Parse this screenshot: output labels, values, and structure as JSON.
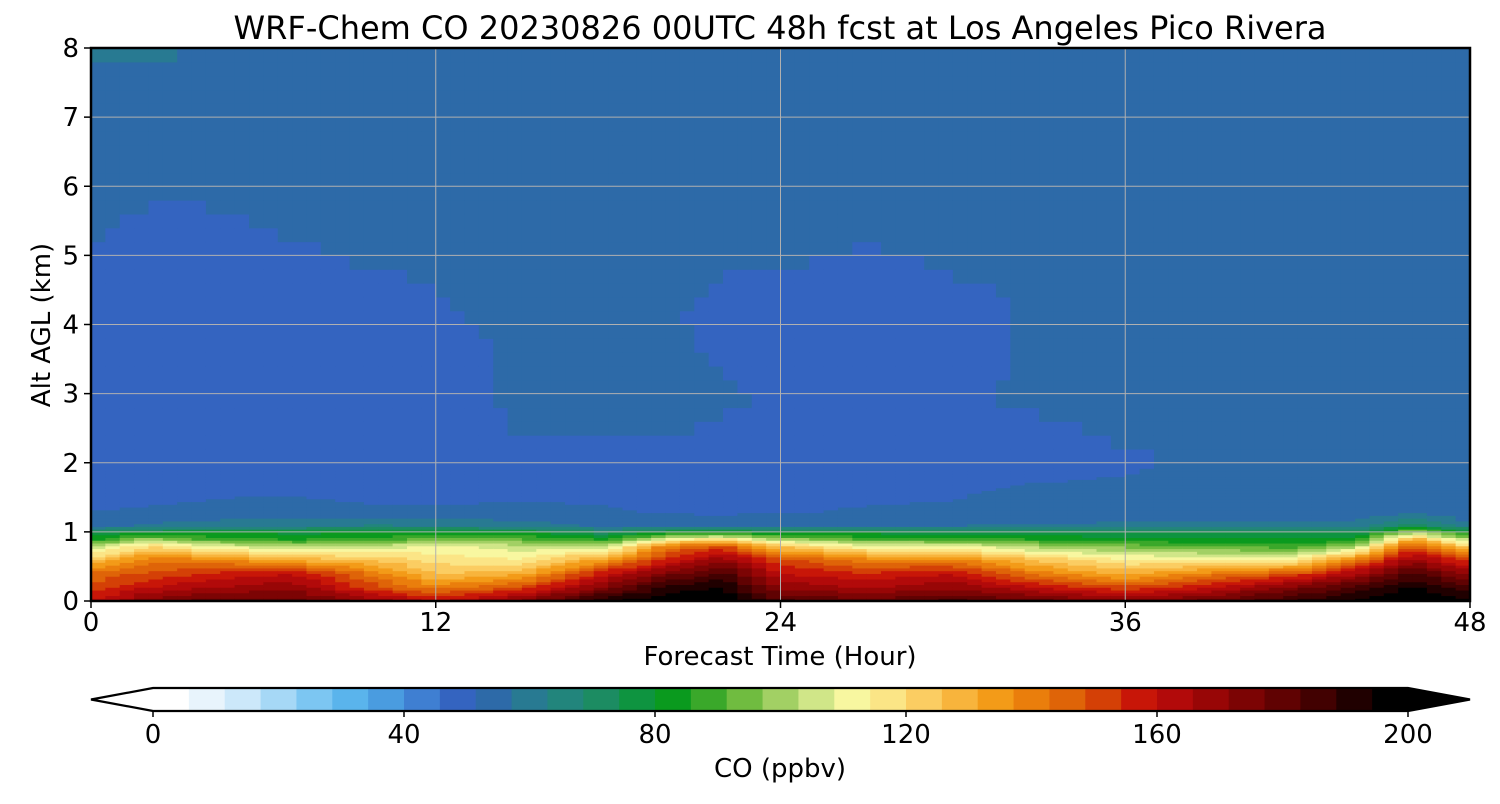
{
  "chart_data": {
    "type": "heatmap",
    "title": "WRF-Chem CO  20230826 00UTC 48h fcst at Los Angeles Pico Rivera",
    "xlabel": "Forecast Time (Hour)",
    "ylabel": "Alt AGL (km)",
    "xlim": [
      0,
      48
    ],
    "ylim": [
      0,
      8
    ],
    "x_ticks": [
      "0",
      "12",
      "24",
      "36",
      "48"
    ],
    "y_ticks": [
      "0",
      "1",
      "2",
      "3",
      "4",
      "5",
      "6",
      "7",
      "8"
    ],
    "grid": true,
    "colorbar": {
      "label": "CO  (ppbv)",
      "ticks": [
        "0",
        "40",
        "80",
        "120",
        "160",
        "200"
      ],
      "range": [
        0,
        200
      ],
      "extend": "both",
      "orientation": "horizontal",
      "colors": [
        "#ffffff",
        "#e8f4fc",
        "#cce8fa",
        "#a6d8f6",
        "#7cc6f2",
        "#5ab4ec",
        "#4a9ce0",
        "#3f7fd2",
        "#3464c0",
        "#2d6aa8",
        "#287a92",
        "#22857c",
        "#1c8c62",
        "#0e9440",
        "#0a9a1e",
        "#3aa82a",
        "#70bc40",
        "#a2d064",
        "#d0e688",
        "#f8f7a0",
        "#fbe586",
        "#fbcd62",
        "#f8b43c",
        "#f39b18",
        "#ea7e0c",
        "#df6408",
        "#d44006",
        "#c81608",
        "#b20a0a",
        "#980606",
        "#7c0404",
        "#600202",
        "#420101",
        "#200000",
        "#000000"
      ]
    },
    "field_note": "CO mixing ratio (ppbv) vs forecast hour and altitude; tabulated as vertical profiles",
    "profile_altitudes_km": [
      0,
      0.2,
      0.4,
      0.6,
      0.8,
      0.9,
      1.0,
      1.1,
      1.3,
      1.6,
      2.0,
      2.5,
      3.0,
      3.5,
      4.0,
      5.0,
      6.0,
      7.0,
      8.0
    ],
    "profiles": [
      {
        "hour": 0,
        "values": [
          160,
          150,
          145,
          125,
          100,
          82,
          75,
          54,
          52,
          46,
          48,
          50,
          52,
          50,
          50,
          51,
          53,
          54,
          58
        ]
      },
      {
        "hour": 2,
        "values": [
          175,
          160,
          150,
          140,
          120,
          100,
          78,
          58,
          52,
          50,
          48,
          50,
          47,
          50,
          48,
          50,
          52,
          54,
          58
        ]
      },
      {
        "hour": 4,
        "values": [
          180,
          165,
          155,
          140,
          110,
          90,
          80,
          60,
          52,
          51,
          51,
          50,
          51,
          49,
          48,
          50,
          52,
          55,
          57
        ]
      },
      {
        "hour": 7,
        "values": [
          180,
          170,
          160,
          130,
          100,
          85,
          78,
          62,
          53,
          51,
          50,
          49,
          49,
          48,
          49,
          51,
          53,
          54,
          55
        ]
      },
      {
        "hour": 10,
        "values": [
          170,
          150,
          140,
          125,
          105,
          88,
          80,
          63,
          52,
          50,
          48,
          48,
          48,
          48,
          49,
          52,
          53,
          53,
          55
        ]
      },
      {
        "hour": 12,
        "values": [
          160,
          140,
          125,
          118,
          110,
          95,
          80,
          62,
          52,
          50,
          49,
          49,
          50,
          50,
          51,
          52,
          53,
          54,
          55
        ]
      },
      {
        "hour": 15,
        "values": [
          175,
          150,
          130,
          115,
          105,
          92,
          80,
          60,
          52,
          51,
          50,
          52,
          52,
          52,
          52,
          52,
          53,
          54,
          55
        ]
      },
      {
        "hour": 18,
        "values": [
          195,
          175,
          160,
          135,
          105,
          85,
          70,
          56,
          52,
          50,
          50,
          52,
          53,
          52,
          52,
          53,
          53,
          54,
          55
        ]
      },
      {
        "hour": 20,
        "values": [
          200,
          190,
          175,
          155,
          140,
          110,
          80,
          55,
          51,
          50,
          50,
          52,
          53,
          53,
          52,
          53,
          54,
          54,
          55
        ]
      },
      {
        "hour": 22,
        "values": [
          200,
          195,
          185,
          170,
          150,
          120,
          80,
          56,
          50,
          50,
          50,
          51,
          52,
          51,
          50,
          52,
          54,
          55,
          56
        ]
      },
      {
        "hour": 24,
        "values": [
          185,
          170,
          160,
          150,
          125,
          100,
          78,
          56,
          51,
          50,
          50,
          51,
          51,
          50,
          49,
          52,
          54,
          55,
          56
        ]
      },
      {
        "hour": 27,
        "values": [
          180,
          165,
          155,
          140,
          110,
          90,
          78,
          57,
          52,
          50,
          50,
          51,
          50,
          49,
          48,
          51,
          54,
          55,
          56
        ]
      },
      {
        "hour": 30,
        "values": [
          185,
          170,
          160,
          140,
          110,
          88,
          76,
          57,
          52,
          51,
          50,
          51,
          51,
          50,
          50,
          52,
          53,
          54,
          55
        ]
      },
      {
        "hour": 33,
        "values": [
          180,
          160,
          140,
          125,
          100,
          85,
          75,
          58,
          53,
          52,
          50,
          51,
          52,
          52,
          52,
          52,
          52,
          53,
          55
        ]
      },
      {
        "hour": 36,
        "values": [
          175,
          150,
          130,
          115,
          95,
          82,
          75,
          58,
          54,
          52,
          51,
          52,
          52,
          52,
          52,
          52,
          52,
          53,
          54
        ]
      },
      {
        "hour": 39,
        "values": [
          180,
          160,
          140,
          115,
          90,
          80,
          74,
          58,
          54,
          52,
          52,
          52,
          52,
          52,
          52,
          52,
          53,
          53,
          53
        ]
      },
      {
        "hour": 42,
        "values": [
          190,
          175,
          150,
          115,
          88,
          80,
          74,
          58,
          54,
          53,
          52,
          52,
          52,
          52,
          52,
          52,
          53,
          53,
          53
        ]
      },
      {
        "hour": 44,
        "values": [
          195,
          185,
          165,
          140,
          100,
          82,
          74,
          58,
          54,
          53,
          52,
          52,
          52,
          52,
          52,
          52,
          53,
          53,
          53
        ]
      },
      {
        "hour": 46,
        "values": [
          200,
          195,
          185,
          170,
          150,
          130,
          100,
          72,
          55,
          53,
          52,
          52,
          52,
          52,
          52,
          52,
          53,
          53,
          53
        ]
      },
      {
        "hour": 48,
        "values": [
          195,
          185,
          170,
          150,
          120,
          100,
          80,
          58,
          52,
          52,
          52,
          52,
          52,
          52,
          52,
          52,
          53,
          53,
          53
        ]
      }
    ]
  }
}
